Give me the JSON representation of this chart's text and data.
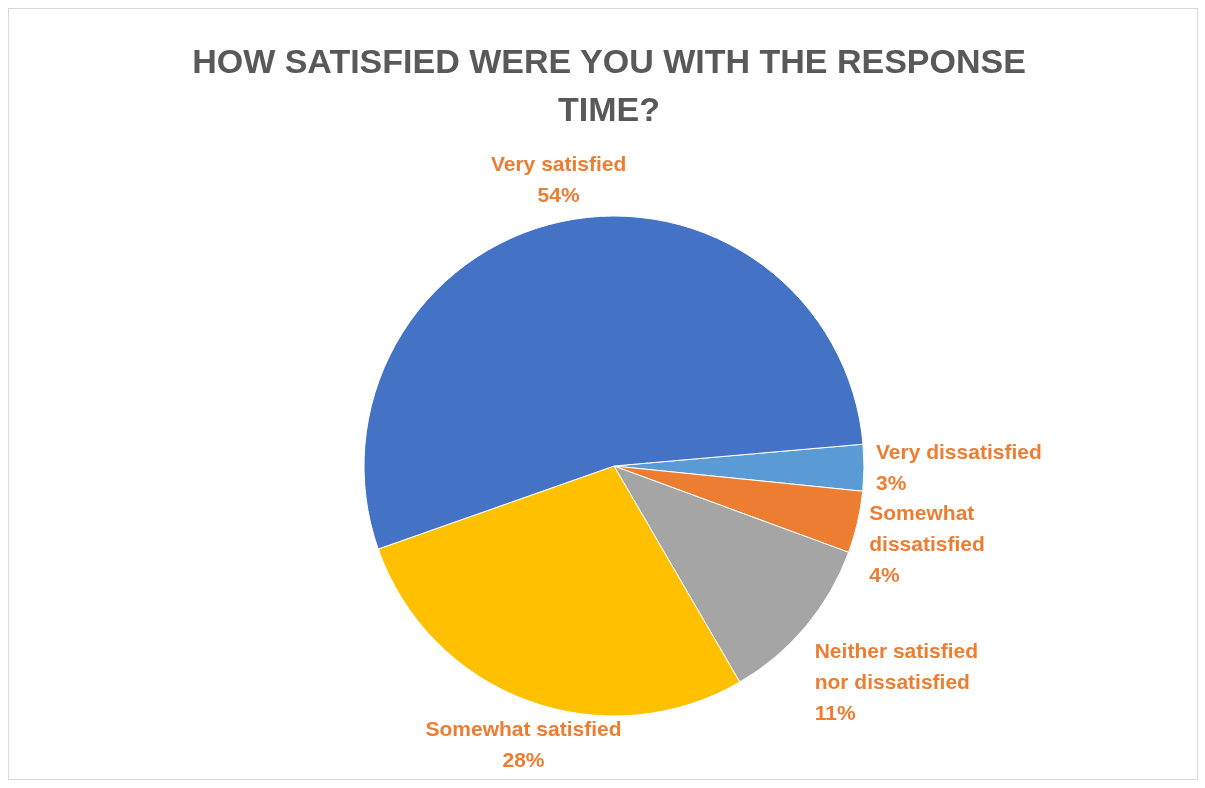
{
  "chart_data": {
    "type": "pie",
    "title": "HOW SATISFIED WERE YOU WITH THE RESPONSE TIME?",
    "categories": [
      "Very dissatisfied",
      "Somewhat dissatisfied",
      "Neither satisfied nor dissatisfied",
      "Somewhat satisfied",
      "Very satisfied"
    ],
    "values": [
      3,
      4,
      11,
      28,
      54
    ],
    "value_labels": [
      "3%",
      "4%",
      "11%",
      "28%",
      "54%"
    ],
    "colors": [
      "#5b9bd5",
      "#ed7d31",
      "#a5a5a5",
      "#ffc000",
      "#4472c4"
    ]
  }
}
